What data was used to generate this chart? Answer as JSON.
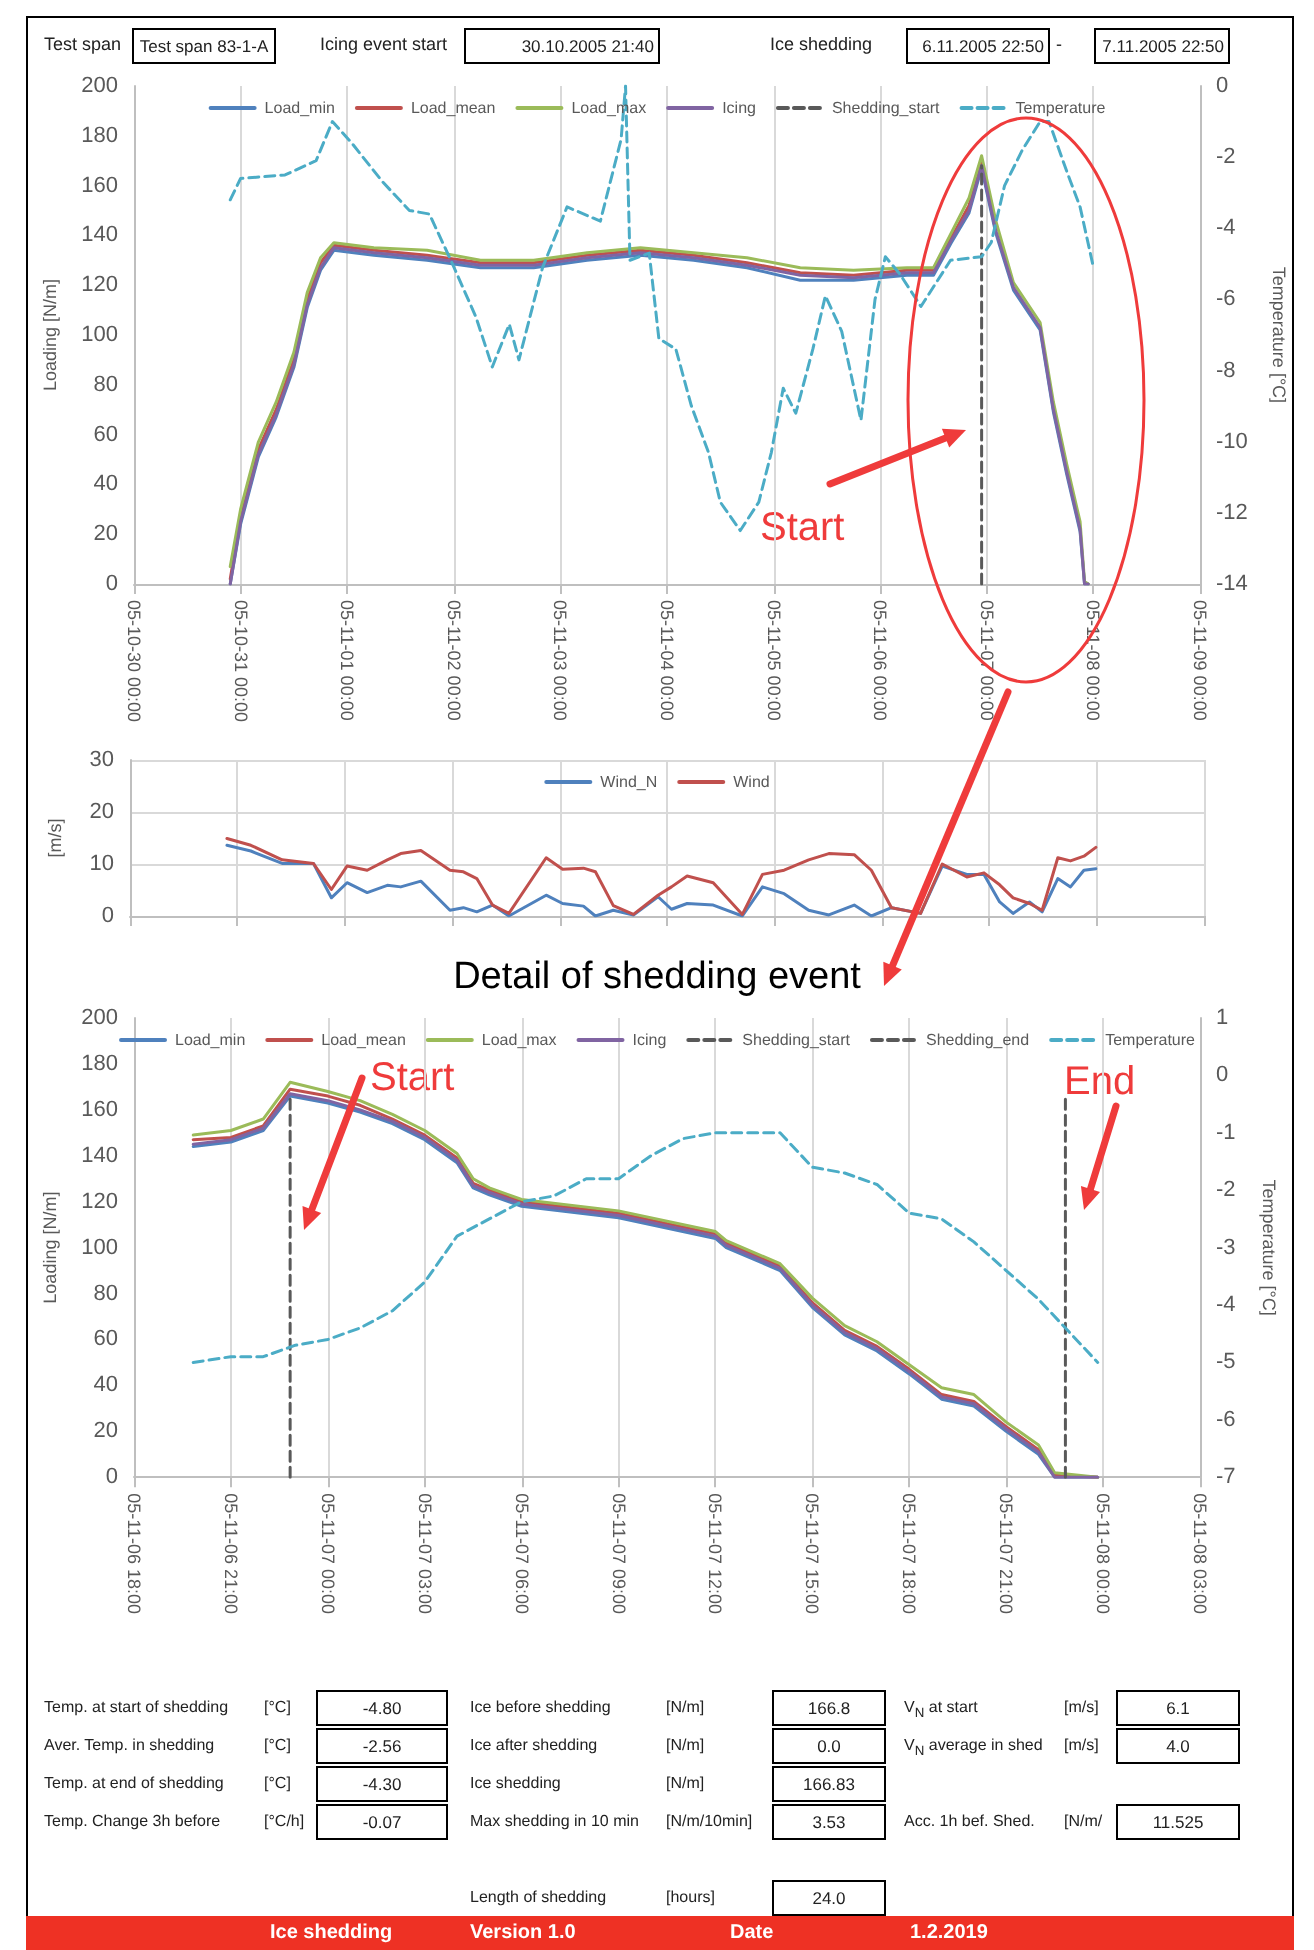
{
  "chart_data": [
    {
      "type": "other",
      "annotations": [
        "Test span",
        "Test span 83-1-A",
        "Icing event start",
        "30.10.2005 21:40",
        "Ice shedding",
        "6.11.2005 22:50",
        "-",
        "7.11.2005 22:50"
      ]
    },
    {
      "type": "line",
      "ylabel": "Loading [N/m]",
      "y2label": "Temperature [°C]",
      "legend": "top",
      "grid": "x",
      "xlim": [
        "2005-10-30T00:00",
        "2005-11-09T00:00"
      ],
      "xticks": [
        {
          "value": "2005-10-30T00:00",
          "label": "05-10-30 00:00"
        },
        {
          "value": "2005-10-31T00:00",
          "label": "05-10-31 00:00"
        },
        {
          "value": "2005-11-01T00:00",
          "label": "05-11-01 00:00"
        },
        {
          "value": "2005-11-02T00:00",
          "label": "05-11-02 00:00"
        },
        {
          "value": "2005-11-03T00:00",
          "label": "05-11-03 00:00"
        },
        {
          "value": "2005-11-04T00:00",
          "label": "05-11-04 00:00"
        },
        {
          "value": "2005-11-05T00:00",
          "label": "05-11-05 00:00"
        },
        {
          "value": "2005-11-06T00:00",
          "label": "05-11-06 00:00"
        },
        {
          "value": "2005-11-07T00:00",
          "label": "05-11-07 00:00"
        },
        {
          "value": "2005-11-08T00:00",
          "label": "05-11-08 00:00"
        },
        {
          "value": "2005-11-09T00:00",
          "label": "05-11-09 00:00"
        }
      ],
      "ylim": [
        0,
        200
      ],
      "yticks": [
        0,
        20,
        40,
        60,
        80,
        100,
        120,
        140,
        160,
        180,
        200
      ],
      "y2lim": [
        -14,
        0
      ],
      "y2ticks": [
        -14,
        -12,
        -10,
        -8,
        -6,
        -4,
        -2,
        0
      ],
      "x": [
        "2005-10-30T21:40",
        "2005-10-31T00:00",
        "2005-10-31T04:00",
        "2005-10-31T08:00",
        "2005-10-31T12:00",
        "2005-10-31T15:00",
        "2005-10-31T18:00",
        "2005-10-31T21:00",
        "2005-11-01T06:00",
        "2005-11-01T18:00",
        "2005-11-02T06:00",
        "2005-11-02T18:00",
        "2005-11-03T06:00",
        "2005-11-03T18:00",
        "2005-11-04T06:00",
        "2005-11-04T18:00",
        "2005-11-05T06:00",
        "2005-11-05T18:00",
        "2005-11-06T06:00",
        "2005-11-06T12:00",
        "2005-11-06T16:00",
        "2005-11-06T20:00",
        "2005-11-06T22:50",
        "2005-11-07T02:00",
        "2005-11-07T06:00",
        "2005-11-07T12:00",
        "2005-11-07T15:00",
        "2005-11-07T18:00",
        "2005-11-07T21:00",
        "2005-11-07T22:00",
        "2005-11-07T22:50"
      ],
      "series": [
        {
          "name": "Load_min",
          "color": "#4f81bd",
          "values": [
            0,
            24,
            51,
            67,
            87,
            111,
            126,
            134,
            132,
            130,
            127,
            127,
            130,
            132,
            130,
            127,
            122,
            122,
            124,
            124,
            137,
            149,
            167,
            141,
            118,
            102,
            69,
            44,
            21,
            0,
            0
          ]
        },
        {
          "name": "Load_mean",
          "color": "#c0504d",
          "values": [
            2,
            27,
            54,
            70,
            90,
            114,
            129,
            136,
            134,
            132,
            129,
            129,
            132,
            134,
            132,
            129,
            125,
            124,
            126,
            126,
            139,
            152,
            170,
            144,
            null,
            null,
            null,
            null,
            null,
            null,
            null
          ]
        },
        {
          "name": "Load_max",
          "color": "#9bbb59",
          "values": [
            7,
            30,
            57,
            73,
            93,
            117,
            131,
            137,
            135,
            134,
            130,
            130,
            133,
            135,
            133,
            131,
            127,
            126,
            127,
            127,
            141,
            155,
            172,
            146,
            121,
            105,
            73,
            48,
            25,
            1,
            0
          ]
        },
        {
          "name": "Icing",
          "color": "#8064a2",
          "values": [
            0,
            25,
            52,
            68,
            88,
            112,
            127,
            135,
            133,
            131,
            128,
            128,
            131,
            133,
            131,
            128,
            124,
            123,
            125,
            125,
            138,
            150,
            168,
            142,
            119,
            103,
            70,
            45,
            22,
            0,
            0
          ]
        },
        {
          "name": "Shedding_start",
          "color": "#595959",
          "line_style": "dashed",
          "x": [
            "2005-11-06T22:50",
            "2005-11-06T22:50"
          ],
          "values": [
            0,
            168
          ]
        },
        {
          "name": "Temperature",
          "color": "#4bacc6",
          "line_style": "dashed",
          "axis": "y2",
          "x": [
            "2005-10-30T21:40",
            "2005-10-31T00:00",
            "2005-10-31T10:00",
            "2005-10-31T17:00",
            "2005-10-31T20:40",
            "2005-11-01T01:00",
            "2005-11-01T08:00",
            "2005-11-01T14:00",
            "2005-11-01T18:30",
            "2005-11-01T23:20",
            "2005-11-02T05:00",
            "2005-11-02T08:40",
            "2005-11-02T12:30",
            "2005-11-02T14:40",
            "2005-11-02T20:00",
            "2005-11-03T01:30",
            "2005-11-03T09:00",
            "2005-11-03T13:40",
            "2005-11-03T14:40",
            "2005-11-03T15:40",
            "2005-11-03T20:00",
            "2005-11-03T22:10",
            "2005-11-04T02:00",
            "2005-11-04T05:30",
            "2005-11-04T09:20",
            "2005-11-04T12:00",
            "2005-11-04T16:30",
            "2005-11-04T20:40",
            "2005-11-04T23:30",
            "2005-11-05T02:10",
            "2005-11-05T05:00",
            "2005-11-05T08:50",
            "2005-11-05T11:40",
            "2005-11-05T15:20",
            "2005-11-05T19:40",
            "2005-11-05T22:50",
            "2005-11-06T01:10",
            "2005-11-06T04:30",
            "2005-11-06T09:10",
            "2005-11-06T15:50",
            "2005-11-06T22:50",
            "2005-11-07T01:00",
            "2005-11-07T04:00",
            "2005-11-07T08:00",
            "2005-11-07T12:00",
            "2005-11-07T14:00",
            "2005-11-07T18:00",
            "2005-11-07T21:00",
            "2005-11-07T23:50"
          ],
          "values": [
            -3.2,
            -2.6,
            -2.5,
            -2.1,
            -1.0,
            -1.6,
            -2.7,
            -3.5,
            -3.6,
            -4.9,
            -6.5,
            -7.9,
            -6.7,
            -7.7,
            -5.1,
            -3.4,
            -3.8,
            -1.5,
            0,
            -4.9,
            -4.7,
            -7.1,
            -7.4,
            -9.0,
            -10.3,
            -11.7,
            -12.5,
            -11.7,
            -10.3,
            -8.5,
            -9.2,
            -7.4,
            -5.9,
            -6.9,
            -9.4,
            -6.0,
            -4.8,
            -5.3,
            -6.2,
            -4.9,
            -4.8,
            -4.4,
            -2.8,
            -1.8,
            -1.0,
            -1.0,
            -2.4,
            -3.4,
            -5.0
          ]
        }
      ],
      "annotations": [
        "Start"
      ]
    },
    {
      "type": "line",
      "ylabel": "[m/s]",
      "legend": "top",
      "grid": true,
      "tick_labels": "y",
      "xlim": [
        "2005-10-30T00:00",
        "2005-11-09T00:00"
      ],
      "xticks": [
        {
          "value": "2005-10-30T00:00",
          "label": null
        },
        {
          "value": "2005-10-31T00:00",
          "label": null
        },
        {
          "value": "2005-11-01T00:00",
          "label": null
        },
        {
          "value": "2005-11-02T00:00",
          "label": null
        },
        {
          "value": "2005-11-03T00:00",
          "label": null
        },
        {
          "value": "2005-11-04T00:00",
          "label": null
        },
        {
          "value": "2005-11-05T00:00",
          "label": null
        },
        {
          "value": "2005-11-06T00:00",
          "label": null
        },
        {
          "value": "2005-11-07T00:00",
          "label": null
        },
        {
          "value": "2005-11-08T00:00",
          "label": null
        },
        {
          "value": "2005-11-09T00:00",
          "label": null
        }
      ],
      "ylim": [
        0,
        30
      ],
      "yticks": [
        0,
        10,
        20,
        30
      ],
      "x": [
        "2005-10-30T21:40",
        "2005-10-31T03:00",
        "2005-10-31T10:00",
        "2005-10-31T17:00",
        "2005-10-31T21:00",
        "2005-11-01T00:30",
        "2005-11-01T05:00",
        "2005-11-01T09:30",
        "2005-11-01T12:30",
        "2005-11-01T17:00",
        "2005-11-01T23:30",
        "2005-11-02T02:30",
        "2005-11-02T05:30",
        "2005-11-02T09:00",
        "2005-11-02T12:40",
        "2005-11-02T21:00",
        "2005-11-03T00:40",
        "2005-11-03T05:20",
        "2005-11-03T08:00",
        "2005-11-03T12:00",
        "2005-11-03T16:30",
        "2005-11-03T22:00",
        "2005-11-04T01:00",
        "2005-11-04T04:30",
        "2005-11-04T10:20",
        "2005-11-04T16:50",
        "2005-11-04T21:20",
        "2005-11-05T02:10",
        "2005-11-05T07:40",
        "2005-11-05T12:10",
        "2005-11-05T17:50",
        "2005-11-05T21:40",
        "2005-11-06T02:10",
        "2005-11-06T08:40",
        "2005-11-06T13:30",
        "2005-11-06T19:00",
        "2005-11-06T22:50",
        "2005-11-07T02:20",
        "2005-11-07T05:20",
        "2005-11-07T09:00",
        "2005-11-07T11:50",
        "2005-11-07T15:20",
        "2005-11-07T18:10",
        "2005-11-07T21:10",
        "2005-11-07T23:50"
      ],
      "series": [
        {
          "name": "Wind_N",
          "color": "#4f81bd",
          "values": [
            13.6,
            12.5,
            10.1,
            10.1,
            3.5,
            6.4,
            4.5,
            5.9,
            5.6,
            6.7,
            1.1,
            1.6,
            0.8,
            2.1,
            0,
            4.0,
            2.4,
            1.9,
            0,
            1.1,
            0.2,
            3.7,
            1.3,
            2.4,
            2.1,
            0,
            5.6,
            4.3,
            1.1,
            0.2,
            2.1,
            0,
            1.6,
            0.5,
            9.6,
            8.0,
            8.0,
            2.7,
            0.5,
            2.7,
            0.8,
            7.2,
            5.6,
            8.8,
            9.1
          ]
        },
        {
          "name": "Wind",
          "color": "#c0504d",
          "values": [
            14.9,
            13.6,
            10.8,
            10.1,
            5.1,
            9.6,
            8.8,
            10.8,
            12.0,
            12.6,
            8.8,
            8.5,
            7.2,
            2.1,
            0.5,
            11.2,
            9.0,
            9.2,
            8.5,
            2.0,
            0.3,
            4.0,
            5.6,
            7.7,
            6.4,
            0.3,
            8.0,
            8.8,
            10.8,
            12.0,
            11.8,
            8.8,
            1.6,
            0.5,
            10.0,
            7.5,
            8.3,
            6.0,
            3.5,
            2.4,
            1.1,
            11.2,
            10.6,
            11.5,
            13.2
          ]
        }
      ]
    },
    {
      "type": "line",
      "title": "Detail of shedding event",
      "ylabel": "Loading [N/m]",
      "y2label": "Temperature [°C]",
      "legend": "top",
      "grid": "x",
      "xlim": [
        "2005-11-06T18:00",
        "2005-11-08T03:00"
      ],
      "xticks": [
        {
          "value": "2005-11-06T18:00",
          "label": "05-11-06 18:00"
        },
        {
          "value": "2005-11-06T21:00",
          "label": "05-11-06 21:00"
        },
        {
          "value": "2005-11-07T00:00",
          "label": "05-11-07 00:00"
        },
        {
          "value": "2005-11-07T03:00",
          "label": "05-11-07 03:00"
        },
        {
          "value": "2005-11-07T06:00",
          "label": "05-11-07 06:00"
        },
        {
          "value": "2005-11-07T09:00",
          "label": "05-11-07 09:00"
        },
        {
          "value": "2005-11-07T12:00",
          "label": "05-11-07 12:00"
        },
        {
          "value": "2005-11-07T15:00",
          "label": "05-11-07 15:00"
        },
        {
          "value": "2005-11-07T18:00",
          "label": "05-11-07 18:00"
        },
        {
          "value": "2005-11-07T21:00",
          "label": "05-11-07 21:00"
        },
        {
          "value": "2005-11-08T00:00",
          "label": "05-11-08 00:00"
        },
        {
          "value": "2005-11-08T03:00",
          "label": "05-11-08 03:00"
        }
      ],
      "ylim": [
        0,
        200
      ],
      "yticks": [
        0,
        20,
        40,
        60,
        80,
        100,
        120,
        140,
        160,
        180,
        200
      ],
      "y2lim": [
        -7,
        1
      ],
      "y2ticks": [
        -7,
        -6,
        -5,
        -4,
        -3,
        -2,
        -1,
        0,
        1
      ],
      "x": [
        "2005-11-06T19:50",
        "2005-11-06T21:00",
        "2005-11-06T22:00",
        "2005-11-06T22:50",
        "2005-11-07T00:00",
        "2005-11-07T01:00",
        "2005-11-07T02:00",
        "2005-11-07T03:00",
        "2005-11-07T04:00",
        "2005-11-07T04:30",
        "2005-11-07T05:00",
        "2005-11-07T06:00",
        "2005-11-07T09:00",
        "2005-11-07T12:00",
        "2005-11-07T12:20",
        "2005-11-07T14:00",
        "2005-11-07T15:00",
        "2005-11-07T16:00",
        "2005-11-07T17:00",
        "2005-11-07T18:00",
        "2005-11-07T19:00",
        "2005-11-07T20:00",
        "2005-11-07T21:00",
        "2005-11-07T22:00",
        "2005-11-07T22:30",
        "2005-11-07T23:50"
      ],
      "series": [
        {
          "name": "Load_min",
          "color": "#4f81bd",
          "values": [
            144,
            146,
            151,
            166,
            163,
            159,
            154,
            147,
            137,
            126,
            123,
            118,
            113,
            104,
            100,
            90,
            74,
            62,
            55,
            45,
            34,
            31,
            20,
            10,
            0,
            0
          ]
        },
        {
          "name": "Load_mean",
          "color": "#c0504d",
          "values": [
            147,
            148,
            153,
            169,
            166,
            162,
            156,
            149,
            139,
            128,
            125,
            120,
            115,
            106,
            102,
            92,
            76,
            64,
            57,
            47,
            36,
            33,
            22,
            12,
            1,
            0
          ]
        },
        {
          "name": "Load_max",
          "color": "#9bbb59",
          "values": [
            149,
            151,
            156,
            172,
            168,
            164,
            158,
            151,
            141,
            130,
            126,
            121,
            116,
            107,
            103,
            93,
            78,
            66,
            59,
            49,
            39,
            36,
            24,
            14,
            2,
            0
          ]
        },
        {
          "name": "Icing",
          "color": "#8064a2",
          "values": [
            145,
            147,
            152,
            167,
            164,
            160,
            155,
            148,
            138,
            127,
            124,
            119,
            114,
            105,
            101,
            91,
            75,
            63,
            56,
            46,
            35,
            32,
            21,
            11,
            0,
            0
          ]
        },
        {
          "name": "Shedding_start",
          "color": "#595959",
          "line_style": "dashed",
          "x": [
            "2005-11-06T22:50",
            "2005-11-06T22:50"
          ],
          "values": [
            0,
            167
          ]
        },
        {
          "name": "Shedding_end",
          "color": "#595959",
          "line_style": "dashed",
          "x": [
            "2005-11-07T22:50",
            "2005-11-07T22:50"
          ],
          "values": [
            0,
            167
          ]
        },
        {
          "name": "Temperature",
          "color": "#4bacc6",
          "line_style": "dashed",
          "axis": "y2",
          "x": [
            "2005-11-06T19:50",
            "2005-11-06T21:00",
            "2005-11-06T22:00",
            "2005-11-06T23:00",
            "2005-11-07T00:00",
            "2005-11-07T01:00",
            "2005-11-07T02:00",
            "2005-11-07T03:00",
            "2005-11-07T04:00",
            "2005-11-07T05:00",
            "2005-11-07T06:00",
            "2005-11-07T07:00",
            "2005-11-07T08:00",
            "2005-11-07T09:00",
            "2005-11-07T10:00",
            "2005-11-07T11:00",
            "2005-11-07T12:00",
            "2005-11-07T14:00",
            "2005-11-07T15:00",
            "2005-11-07T16:00",
            "2005-11-07T17:00",
            "2005-11-07T18:00",
            "2005-11-07T19:00",
            "2005-11-07T20:00",
            "2005-11-07T21:00",
            "2005-11-07T22:00",
            "2005-11-07T23:00",
            "2005-11-07T23:50"
          ],
          "values": [
            -5.0,
            -4.9,
            -4.9,
            -4.7,
            -4.6,
            -4.4,
            -4.1,
            -3.6,
            -2.8,
            -2.5,
            -2.2,
            -2.1,
            -1.8,
            -1.8,
            -1.4,
            -1.1,
            -1.0,
            -1.0,
            -1.6,
            -1.7,
            -1.9,
            -2.4,
            -2.5,
            -2.9,
            -3.4,
            -3.9,
            -4.5,
            -5.0
          ]
        }
      ],
      "annotations": [
        "Start",
        "End"
      ]
    },
    {
      "type": "other",
      "annotations": [
        "Temp. at start of shedding",
        "[°C]",
        "-4.80",
        "Ice before shedding",
        "[N/m]",
        "166.8",
        "V$_{N}$ at start",
        "[m/s]",
        "6.1",
        "Aver. Temp. in shedding",
        "[°C]",
        "-2.56",
        "Ice after shedding",
        "[N/m]",
        "0.0",
        "V$_{N}$ average in shed",
        "[m/s]",
        "4.0",
        "Temp. at end of shedding",
        "[°C]",
        "-4.30",
        "Ice shedding",
        "[N/m]",
        "166.83",
        "Temp. Change 3h before",
        "[°C/h]",
        "-0.07",
        "Max shedding in 10 min",
        "[N/m/10min]",
        "3.53",
        "Acc. 1h bef. Shed.",
        "[N/m/",
        "11.525",
        "Length of shedding",
        "[hours]",
        "24.0",
        "Ice shedding",
        "Version 1.0",
        "Date",
        "1.2.2019"
      ]
    }
  ]
}
